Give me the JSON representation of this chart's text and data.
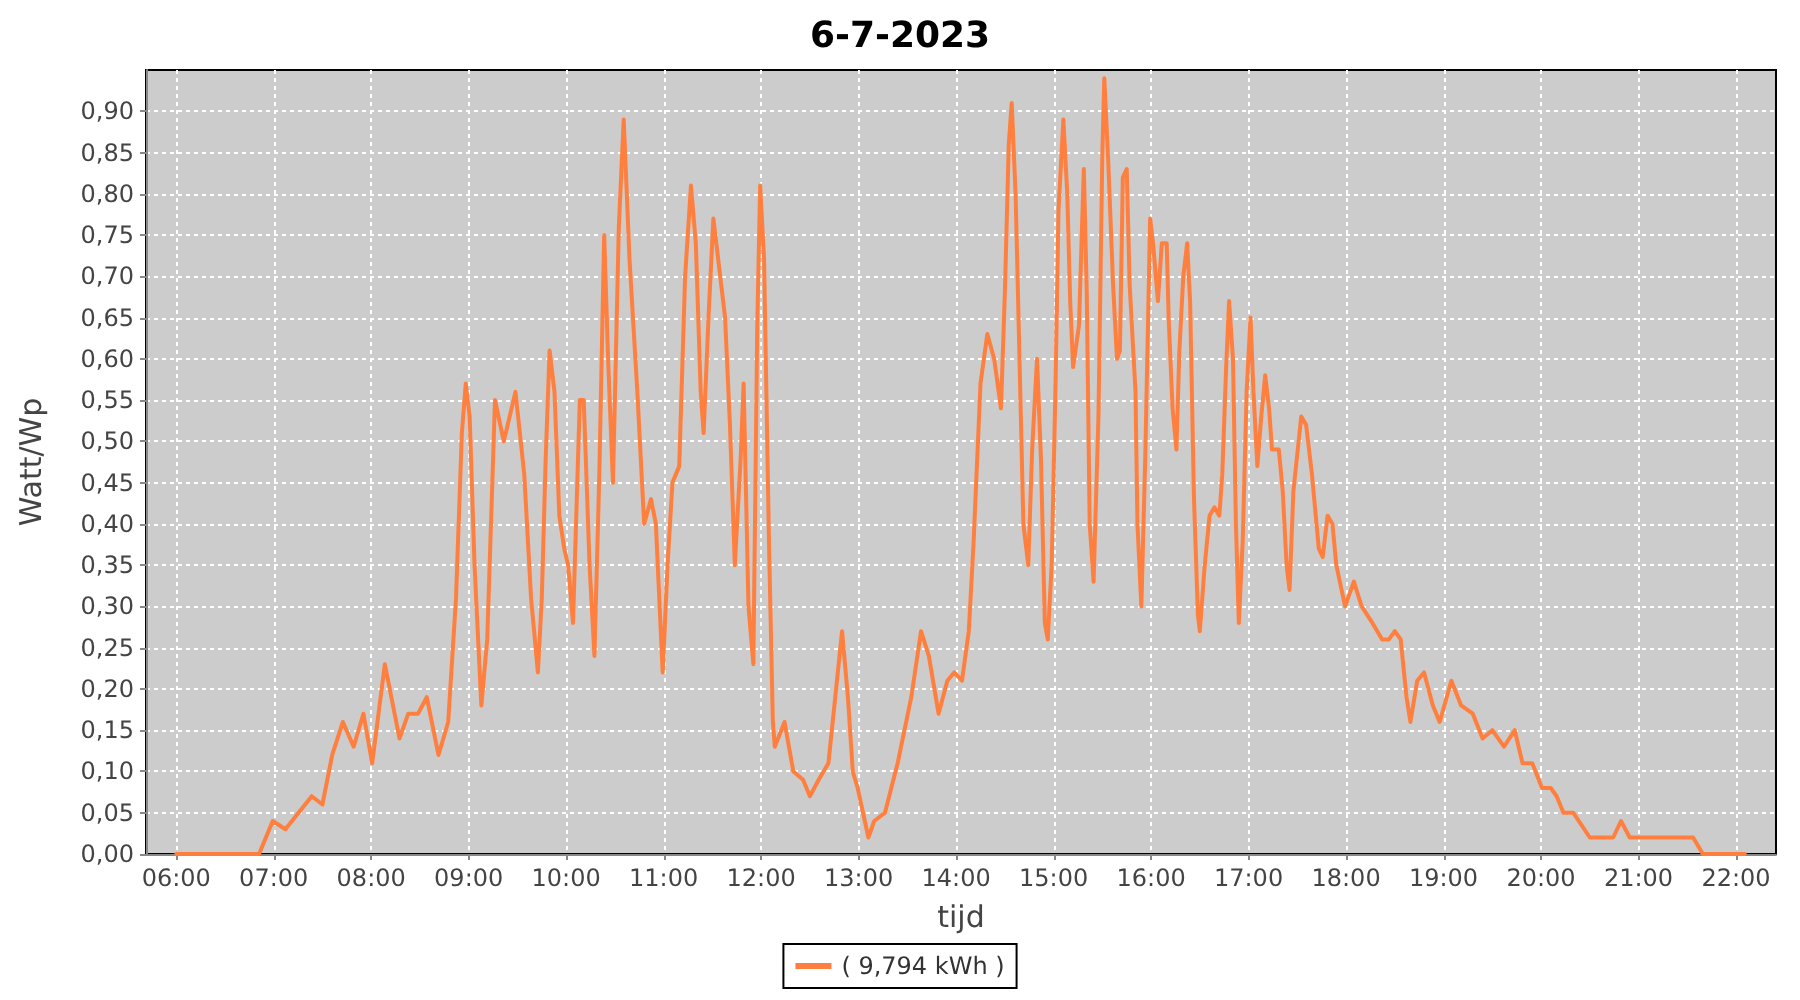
{
  "chart_data": {
    "type": "line",
    "title": "6-7-2023",
    "xlabel": "tijd",
    "ylabel": "Watt/Wp",
    "xlim": [
      5.69,
      22.41
    ],
    "ylim": [
      0,
      0.95
    ],
    "xticks": [
      {
        "value": 6,
        "label": "06:00"
      },
      {
        "value": 7,
        "label": "07:00"
      },
      {
        "value": 8,
        "label": "08:00"
      },
      {
        "value": 9,
        "label": "09:00"
      },
      {
        "value": 10,
        "label": "10:00"
      },
      {
        "value": 11,
        "label": "11:00"
      },
      {
        "value": 12,
        "label": "12:00"
      },
      {
        "value": 13,
        "label": "13:00"
      },
      {
        "value": 14,
        "label": "14:00"
      },
      {
        "value": 15,
        "label": "15:00"
      },
      {
        "value": 16,
        "label": "16:00"
      },
      {
        "value": 17,
        "label": "17:00"
      },
      {
        "value": 18,
        "label": "18:00"
      },
      {
        "value": 19,
        "label": "19:00"
      },
      {
        "value": 20,
        "label": "20:00"
      },
      {
        "value": 21,
        "label": "21:00"
      },
      {
        "value": 22,
        "label": "22:00"
      }
    ],
    "yticks": [
      {
        "value": 0,
        "label": "0,00"
      },
      {
        "value": 0.05,
        "label": "0,05"
      },
      {
        "value": 0.1,
        "label": "0,10"
      },
      {
        "value": 0.15,
        "label": "0,15"
      },
      {
        "value": 0.2,
        "label": "0,20"
      },
      {
        "value": 0.25,
        "label": "0,25"
      },
      {
        "value": 0.3,
        "label": "0,30"
      },
      {
        "value": 0.35,
        "label": "0,35"
      },
      {
        "value": 0.4,
        "label": "0,40"
      },
      {
        "value": 0.45,
        "label": "0,45"
      },
      {
        "value": 0.5,
        "label": "0,50"
      },
      {
        "value": 0.55,
        "label": "0,55"
      },
      {
        "value": 0.6,
        "label": "0,60"
      },
      {
        "value": 0.65,
        "label": "0,65"
      },
      {
        "value": 0.7,
        "label": "0,70"
      },
      {
        "value": 0.75,
        "label": "0,75"
      },
      {
        "value": 0.8,
        "label": "0,80"
      },
      {
        "value": 0.85,
        "label": "0,85"
      },
      {
        "value": 0.9,
        "label": "0,90"
      }
    ],
    "grid": true,
    "legend": "bottom",
    "x": [
      6.0,
      6.85,
      6.99,
      7.12,
      7.39,
      7.5,
      7.6,
      7.71,
      7.82,
      7.92,
      8.01,
      8.14,
      8.29,
      8.38,
      8.48,
      8.57,
      8.69,
      8.79,
      8.87,
      8.93,
      8.97,
      9.01,
      9.06,
      9.13,
      9.19,
      9.27,
      9.36,
      9.48,
      9.57,
      9.64,
      9.71,
      9.75,
      9.79,
      9.83,
      9.88,
      9.93,
      9.98,
      10.02,
      10.07,
      10.14,
      10.18,
      10.24,
      10.29,
      10.34,
      10.39,
      10.43,
      10.48,
      10.54,
      10.59,
      10.65,
      10.73,
      10.8,
      10.87,
      10.92,
      10.99,
      11.04,
      11.09,
      11.16,
      11.22,
      11.28,
      11.33,
      11.38,
      11.41,
      11.46,
      11.51,
      11.56,
      11.63,
      11.68,
      11.73,
      11.79,
      11.82,
      11.87,
      11.92,
      11.96,
      11.99,
      12.03,
      12.08,
      12.12,
      12.14,
      12.24,
      12.33,
      12.43,
      12.5,
      12.59,
      12.69,
      12.76,
      12.83,
      12.89,
      12.94,
      12.99,
      13.1,
      13.16,
      13.27,
      13.4,
      13.54,
      13.64,
      13.72,
      13.82,
      13.91,
      13.98,
      14.06,
      14.13,
      14.18,
      14.25,
      14.32,
      14.39,
      14.46,
      14.5,
      14.54,
      14.57,
      14.61,
      14.66,
      14.69,
      14.74,
      14.78,
      14.83,
      14.87,
      14.91,
      14.94,
      14.98,
      15.02,
      15.05,
      15.1,
      15.14,
      15.17,
      15.2,
      15.26,
      15.31,
      15.34,
      15.37,
      15.41,
      15.46,
      15.5,
      15.52,
      15.56,
      15.61,
      15.65,
      15.68,
      15.71,
      15.75,
      15.78,
      15.84,
      15.86,
      15.9,
      15.94,
      15.99,
      16.02,
      16.07,
      16.11,
      16.16,
      16.18,
      16.22,
      16.26,
      16.29,
      16.33,
      16.37,
      16.4,
      16.44,
      16.48,
      16.5,
      16.55,
      16.6,
      16.65,
      16.7,
      16.73,
      16.77,
      16.8,
      16.84,
      16.87,
      16.9,
      16.94,
      16.98,
      17.02,
      17.05,
      17.09,
      17.13,
      17.17,
      17.21,
      17.24,
      17.31,
      17.35,
      17.39,
      17.42,
      17.46,
      17.54,
      17.59,
      17.65,
      17.72,
      17.76,
      17.81,
      17.86,
      17.9,
      17.99,
      18.08,
      18.16,
      18.27,
      18.37,
      18.44,
      18.5,
      18.56,
      18.62,
      18.66,
      18.73,
      18.8,
      18.89,
      18.96,
      19.08,
      19.18,
      19.3,
      19.4,
      19.5,
      19.62,
      19.73,
      19.81,
      19.91,
      20.01,
      20.1,
      20.16,
      20.23,
      20.33,
      20.5,
      20.74,
      20.82,
      20.91,
      21.56,
      21.66,
      22.09
    ],
    "series": [
      {
        "name": "( 9,794 kWh )",
        "color": "#ff7f3f",
        "values": [
          0,
          0,
          0.04,
          0.03,
          0.07,
          0.06,
          0.12,
          0.16,
          0.13,
          0.17,
          0.11,
          0.23,
          0.14,
          0.17,
          0.17,
          0.19,
          0.12,
          0.16,
          0.31,
          0.51,
          0.57,
          0.53,
          0.35,
          0.18,
          0.26,
          0.55,
          0.5,
          0.56,
          0.46,
          0.31,
          0.22,
          0.31,
          0.48,
          0.61,
          0.56,
          0.41,
          0.37,
          0.35,
          0.28,
          0.55,
          0.55,
          0.35,
          0.24,
          0.46,
          0.75,
          0.6,
          0.45,
          0.76,
          0.89,
          0.72,
          0.56,
          0.4,
          0.43,
          0.4,
          0.22,
          0.35,
          0.45,
          0.47,
          0.7,
          0.81,
          0.74,
          0.56,
          0.51,
          0.65,
          0.77,
          0.72,
          0.65,
          0.52,
          0.35,
          0.48,
          0.57,
          0.3,
          0.23,
          0.64,
          0.81,
          0.72,
          0.38,
          0.16,
          0.13,
          0.16,
          0.1,
          0.09,
          0.07,
          0.09,
          0.11,
          0.19,
          0.27,
          0.19,
          0.1,
          0.08,
          0.02,
          0.04,
          0.05,
          0.11,
          0.19,
          0.27,
          0.24,
          0.17,
          0.21,
          0.22,
          0.21,
          0.27,
          0.38,
          0.57,
          0.63,
          0.6,
          0.54,
          0.68,
          0.86,
          0.91,
          0.8,
          0.55,
          0.4,
          0.35,
          0.49,
          0.6,
          0.48,
          0.28,
          0.26,
          0.35,
          0.57,
          0.78,
          0.89,
          0.8,
          0.67,
          0.59,
          0.64,
          0.83,
          0.68,
          0.4,
          0.33,
          0.53,
          0.85,
          0.94,
          0.84,
          0.69,
          0.6,
          0.61,
          0.82,
          0.83,
          0.69,
          0.56,
          0.4,
          0.3,
          0.48,
          0.77,
          0.74,
          0.67,
          0.74,
          0.74,
          0.65,
          0.54,
          0.49,
          0.61,
          0.7,
          0.74,
          0.67,
          0.43,
          0.29,
          0.27,
          0.35,
          0.41,
          0.42,
          0.41,
          0.46,
          0.59,
          0.67,
          0.6,
          0.4,
          0.28,
          0.38,
          0.56,
          0.65,
          0.56,
          0.47,
          0.53,
          0.58,
          0.54,
          0.49,
          0.49,
          0.44,
          0.35,
          0.32,
          0.44,
          0.53,
          0.52,
          0.46,
          0.37,
          0.36,
          0.41,
          0.4,
          0.35,
          0.3,
          0.33,
          0.3,
          0.28,
          0.26,
          0.26,
          0.27,
          0.26,
          0.19,
          0.16,
          0.21,
          0.22,
          0.18,
          0.16,
          0.21,
          0.18,
          0.17,
          0.14,
          0.15,
          0.13,
          0.15,
          0.11,
          0.11,
          0.08,
          0.08,
          0.07,
          0.05,
          0.05,
          0.02,
          0.02,
          0.04,
          0.02,
          0.02,
          0,
          0
        ]
      }
    ]
  }
}
